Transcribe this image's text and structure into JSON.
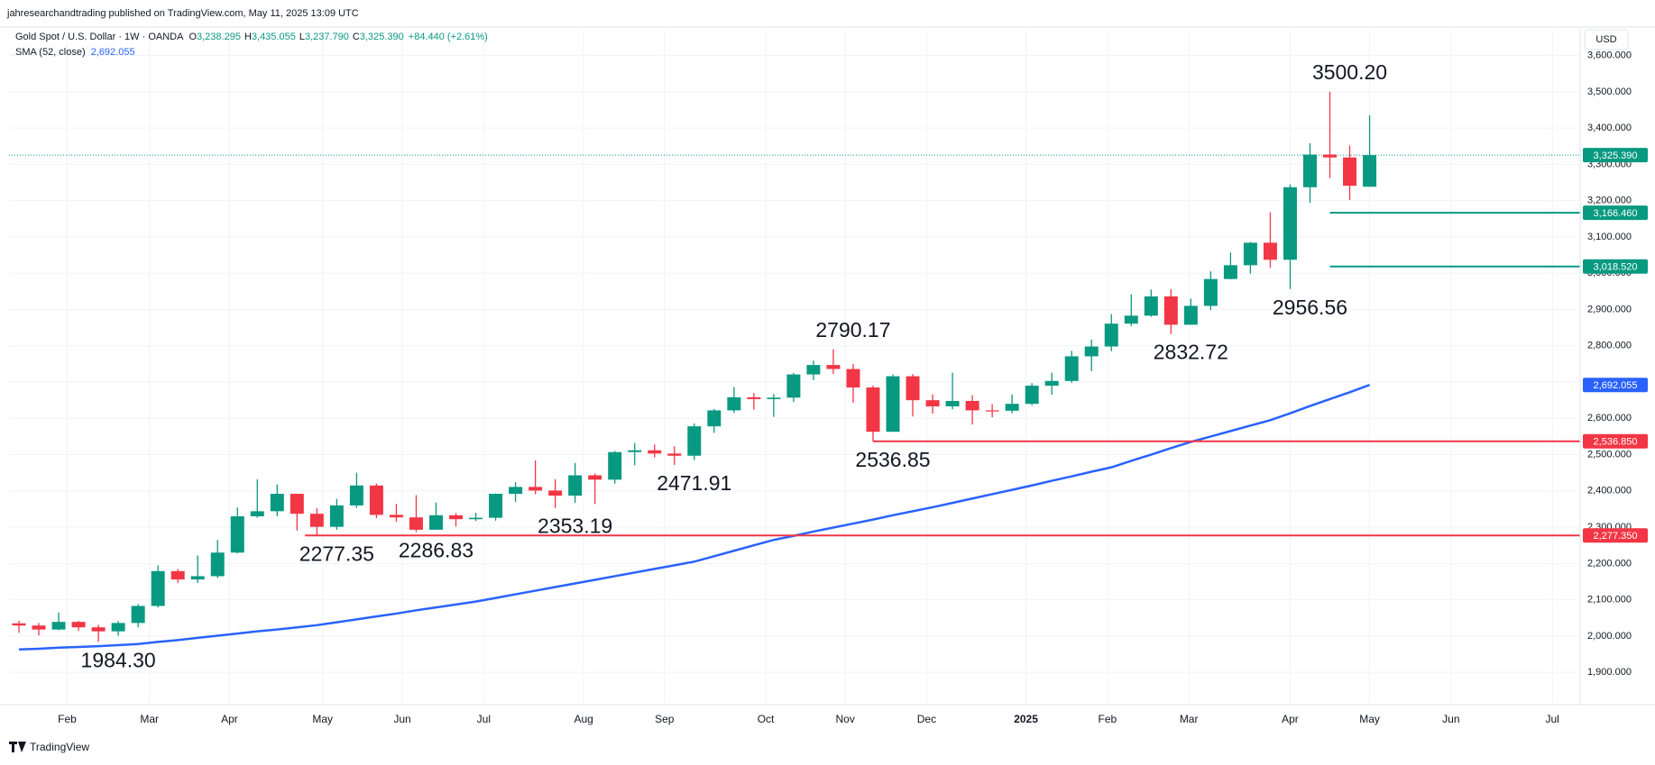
{
  "header": {
    "publisher": "jahresearchandtrading published on TradingView.com, May 11, 2025 13:09 UTC",
    "currency": "USD",
    "brand": "TradingView"
  },
  "legend": {
    "symbol": "Gold Spot / U.S. Dollar · 1W · OANDA",
    "items": [
      {
        "prefix": "O",
        "label": "3,238.295"
      },
      {
        "prefix": "H",
        "label": "3,435.055"
      },
      {
        "prefix": "L",
        "label": "3,237.790"
      },
      {
        "prefix": "C",
        "label": "3,325.390"
      }
    ],
    "change": "+84.440 (+2.61%)",
    "sma_name": "SMA (52, close)",
    "sma_value": "2,692.055"
  },
  "chart_data": {
    "type": "candlestick",
    "up_color": "#089981",
    "down_color": "#f23645",
    "sma_color": "#2962ff",
    "grid": true,
    "open": [
      2035,
      2029,
      2018,
      2039,
      2024,
      2013,
      2036,
      2083,
      2179,
      2156,
      2165,
      2230,
      2330,
      2344,
      2392,
      2337,
      2301,
      2360,
      2415,
      2334,
      2327,
      2293,
      2333,
      2322,
      2326,
      2392,
      2411,
      2401,
      2387,
      2443,
      2431,
      2507,
      2512,
      2503,
      2497,
      2578,
      2622,
      2658,
      2653,
      2657,
      2721,
      2747,
      2736,
      2685,
      2563,
      2716,
      2650,
      2633,
      2648,
      2622,
      2621,
      2640,
      2690,
      2703,
      2771,
      2798,
      2861,
      2883,
      2936,
      2858,
      2910,
      2984,
      3022,
      3084,
      3037,
      3237,
      3327,
      3319,
      3238.295
    ],
    "high": [
      2042,
      2036,
      2065,
      2042,
      2031,
      2041,
      2088,
      2195,
      2185,
      2222,
      2265,
      2354,
      2432,
      2418,
      2392,
      2352,
      2378,
      2450,
      2420,
      2364,
      2388,
      2368,
      2339,
      2340,
      2393,
      2424,
      2484,
      2432,
      2477,
      2448,
      2510,
      2532,
      2528,
      2523,
      2586,
      2626,
      2686,
      2670,
      2667,
      2725,
      2759,
      2790.17,
      2750,
      2690,
      2721,
      2722,
      2666,
      2726,
      2664,
      2639,
      2666,
      2697,
      2726,
      2786,
      2817,
      2887,
      2942,
      2955,
      2956,
      2930,
      3005,
      3057,
      3086,
      3168,
      3245,
      3358,
      3500.2,
      3352,
      3435.055
    ],
    "low": [
      2009,
      2002,
      2016,
      2014,
      1984.3,
      2001,
      2024,
      2079,
      2146,
      2146,
      2160,
      2228,
      2326,
      2330,
      2291,
      2277.35,
      2293,
      2353,
      2325,
      2315,
      2286.83,
      2294,
      2302,
      2317,
      2318,
      2370,
      2391,
      2353.19,
      2367,
      2364,
      2420,
      2471,
      2492,
      2471.91,
      2485,
      2560,
      2615,
      2624,
      2604,
      2645,
      2705,
      2722,
      2643,
      2536.85,
      2563,
      2605,
      2613,
      2625,
      2583,
      2603,
      2614,
      2636,
      2665,
      2698,
      2730,
      2785,
      2854,
      2880,
      2832.72,
      2858,
      2898,
      2983,
      2999,
      3015,
      2956.56,
      3194,
      3262,
      3202,
      3237.79
    ],
    "close": [
      2029,
      2018,
      2039,
      2024,
      2013,
      2036,
      2083,
      2179,
      2156,
      2165,
      2230,
      2330,
      2344,
      2392,
      2337,
      2301,
      2360,
      2415,
      2334,
      2327,
      2293,
      2333,
      2322,
      2326,
      2392,
      2411,
      2401,
      2387,
      2443,
      2431,
      2507,
      2512,
      2503,
      2497,
      2578,
      2622,
      2658,
      2653,
      2657,
      2721,
      2747,
      2736,
      2685,
      2563,
      2716,
      2650,
      2633,
      2648,
      2622,
      2621,
      2640,
      2690,
      2703,
      2771,
      2798,
      2861,
      2883,
      2936,
      2858,
      2910,
      2984,
      3022,
      3084,
      3037,
      3237,
      3327,
      3319,
      3241,
      3325.39
    ],
    "sma": [
      1963,
      1965,
      1968,
      1970,
      1972,
      1975,
      1978,
      1984,
      1989,
      1995,
      2001,
      2007,
      2013,
      2018,
      2024,
      2030,
      2038,
      2046,
      2054,
      2062,
      2071,
      2079,
      2087,
      2095,
      2105,
      2115,
      2125,
      2135,
      2145,
      2155,
      2165,
      2175,
      2185,
      2195,
      2205,
      2220,
      2235,
      2250,
      2265,
      2276,
      2288,
      2299,
      2310,
      2321,
      2333,
      2344,
      2355,
      2367,
      2379,
      2391,
      2403,
      2415,
      2428,
      2440,
      2453,
      2465,
      2483,
      2500,
      2518,
      2535,
      2550,
      2565,
      2580,
      2595,
      2614,
      2634,
      2653,
      2672,
      2692.055
    ],
    "annotations": [
      {
        "value": 1984.3,
        "label": "1984.30"
      },
      {
        "value": 2277.35,
        "label": "2277.35"
      },
      {
        "value": 2286.83,
        "label": "2286.83"
      },
      {
        "value": 2353.19,
        "label": "2353.19"
      },
      {
        "value": 2471.91,
        "label": "2471.91"
      },
      {
        "value": 2790.17,
        "label": "2790.17"
      },
      {
        "value": 2536.85,
        "label": "2536.85"
      },
      {
        "value": 2832.72,
        "label": "2832.72"
      },
      {
        "value": 2956.56,
        "label": "2956.56"
      },
      {
        "value": 3500.2,
        "label": "3500.20"
      }
    ],
    "levels": [
      {
        "value": 3166.46,
        "label": "3,166.460",
        "color": "#089981",
        "x_start": 66
      },
      {
        "value": 3018.52,
        "label": "3,018.520",
        "color": "#089981",
        "x_start": 66
      },
      {
        "value": 2536.85,
        "label": "2,536.850",
        "color": "#f23645",
        "x_start": 43
      },
      {
        "value": 2277.35,
        "label": "2,277.350",
        "color": "#f23645",
        "x_start": 14.4
      }
    ],
    "xlim": [
      -0.5,
      78.6
    ],
    "xticks": [
      {
        "value": 2.43,
        "label": "Feb"
      },
      {
        "value": 6.57,
        "label": "Mar"
      },
      {
        "value": 10.6,
        "label": "Apr"
      },
      {
        "value": 15.29,
        "label": "May"
      },
      {
        "value": 19.3,
        "label": "Jun"
      },
      {
        "value": 23.4,
        "label": "Jul"
      },
      {
        "value": 28.43,
        "label": "Aug"
      },
      {
        "value": 32.5,
        "label": "Sep"
      },
      {
        "value": 37.6,
        "label": "Oct"
      },
      {
        "value": 41.6,
        "label": "Nov"
      },
      {
        "value": 45.7,
        "label": "Dec"
      },
      {
        "value": 50.7,
        "label": "2025"
      },
      {
        "value": 54.8,
        "label": "Feb"
      },
      {
        "value": 58.9,
        "label": "Mar"
      },
      {
        "value": 64,
        "label": "Apr"
      },
      {
        "value": 68,
        "label": "May"
      },
      {
        "value": 72.1,
        "label": "Jun"
      },
      {
        "value": 77.2,
        "label": "Jul"
      }
    ],
    "ylim": [
      1811,
      3671
    ],
    "yticks": [
      {
        "value": 1900,
        "label": "1,900.000"
      },
      {
        "value": 2000,
        "label": "2,000.000"
      },
      {
        "value": 2100,
        "label": "2,100.000"
      },
      {
        "value": 2200,
        "label": "2,200.000"
      },
      {
        "value": 2300,
        "label": "2,300.000"
      },
      {
        "value": 2400,
        "label": "2,400.000"
      },
      {
        "value": 2500,
        "label": "2,500.000"
      },
      {
        "value": 2600,
        "label": "2,600.000"
      },
      {
        "value": 2700,
        "label": "2,700.000"
      },
      {
        "value": 2800,
        "label": "2,800.000"
      },
      {
        "value": 2900,
        "label": "2,900.000"
      },
      {
        "value": 3000,
        "label": "3,000.000"
      },
      {
        "value": 3100,
        "label": "3,100.000"
      },
      {
        "value": 3200,
        "label": "3,200.000"
      },
      {
        "value": 3300,
        "label": "3,300.000"
      },
      {
        "value": 3400,
        "label": "3,400.000"
      },
      {
        "value": 3500,
        "label": "3,500.000"
      },
      {
        "value": 3600,
        "label": "3,600.000"
      }
    ]
  }
}
